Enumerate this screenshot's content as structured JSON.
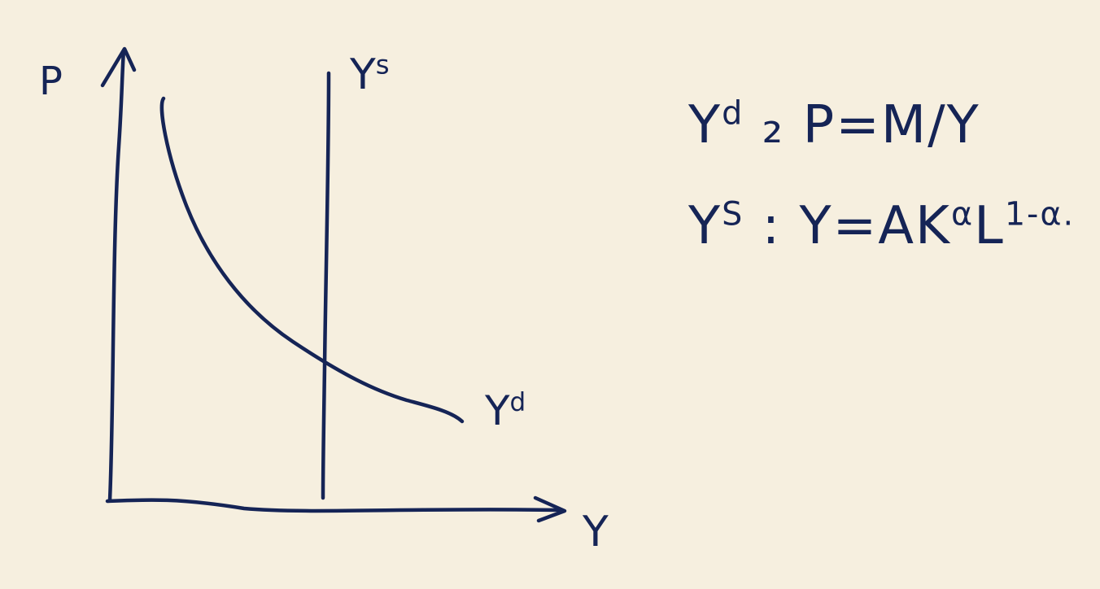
{
  "axes": {
    "y_axis_label": "P",
    "x_axis_label": "Y"
  },
  "curves": {
    "supply": {
      "name": "Y",
      "sup": "s"
    },
    "demand": {
      "name": "Y",
      "sup": "d"
    }
  },
  "equations": {
    "demand": {
      "lhs": "Y",
      "lhs_sup": "d",
      "sep": " ₂ ",
      "body": "P=M/Y"
    },
    "supply": {
      "lhs": "Y",
      "lhs_sup": "S",
      "sep": " : ",
      "body_a": "Y=AK",
      "sup_a": "α",
      "body_b": "L",
      "sup_b": "1-α."
    }
  },
  "colors": {
    "background": "#f6efdf",
    "ink": "#152456"
  }
}
